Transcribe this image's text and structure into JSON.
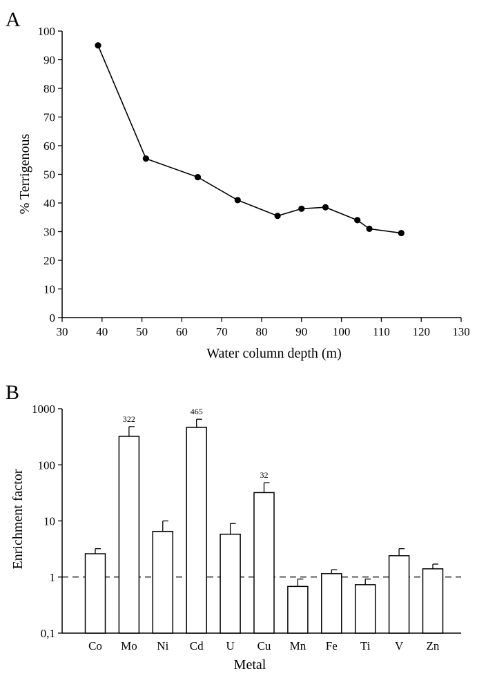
{
  "chart_data": [
    {
      "panel_label": "A",
      "type": "line",
      "title": "",
      "xlabel": "Water column depth (m)",
      "ylabel": "% Terrigenous",
      "xlim": [
        30,
        130
      ],
      "ylim": [
        0,
        100
      ],
      "xticks": [
        "30",
        "40",
        "50",
        "60",
        "70",
        "80",
        "90",
        "100",
        "110",
        "120",
        "130"
      ],
      "yticks": [
        "0",
        "10",
        "20",
        "30",
        "40",
        "50",
        "60",
        "70",
        "80",
        "90",
        "100"
      ],
      "grid": false,
      "x": [
        39,
        51,
        64,
        74,
        84,
        90,
        96,
        104,
        107,
        115
      ],
      "y": [
        95,
        55.5,
        49,
        41,
        35.5,
        38,
        38.5,
        34,
        31,
        29.5
      ]
    },
    {
      "panel_label": "B",
      "type": "bar",
      "title": "",
      "xlabel": "Metal",
      "ylabel": "Enrichment factor",
      "yscale": "log",
      "ylim": [
        0.1,
        1000
      ],
      "yticks": [
        "0,1",
        "1",
        "10",
        "100",
        "1000"
      ],
      "grid": false,
      "reference_line": 1,
      "categories": [
        "Co",
        "Mo",
        "Ni",
        "Cd",
        "U",
        "Cu",
        "Mn",
        "Fe",
        "Ti",
        "V",
        "Zn"
      ],
      "values": [
        2.6,
        322,
        6.5,
        465,
        5.8,
        32,
        0.68,
        1.15,
        0.73,
        2.4,
        1.4
      ],
      "error_upper": [
        3.2,
        480,
        10,
        650,
        9,
        48,
        0.92,
        1.35,
        0.92,
        3.2,
        1.7
      ],
      "data_labels": [
        "",
        "322",
        "",
        "465",
        "",
        "32",
        "",
        "",
        "",
        "",
        ""
      ]
    }
  ]
}
